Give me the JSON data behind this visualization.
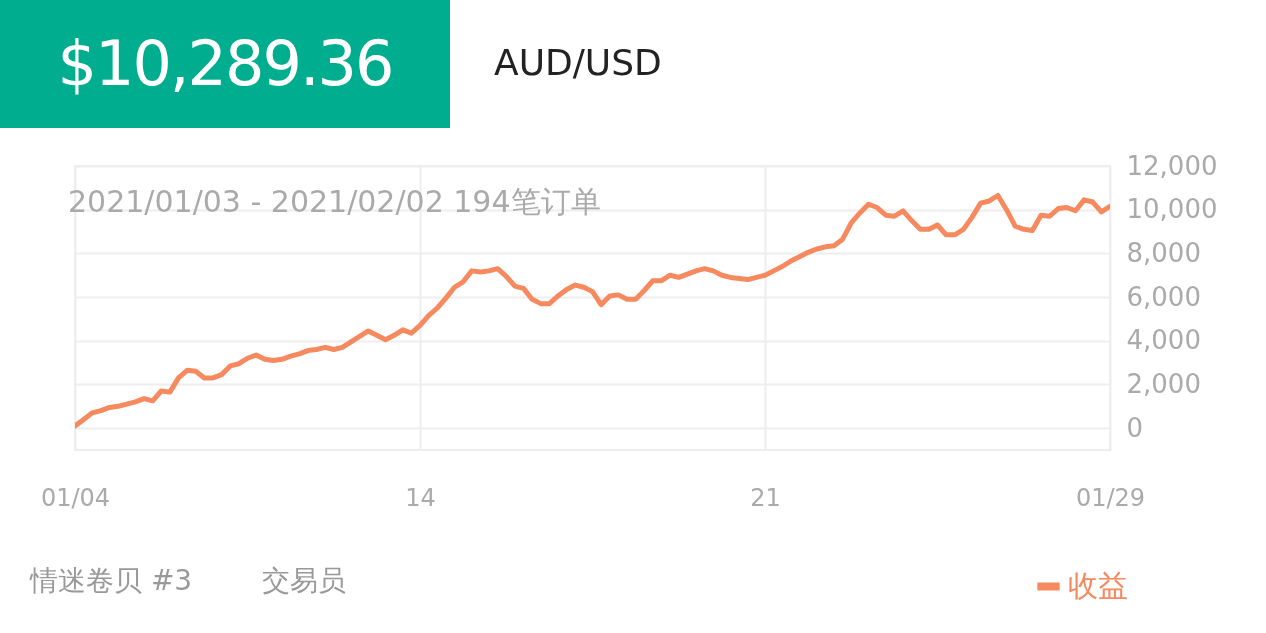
{
  "chart_data": {
    "type": "line",
    "title": "$10,289.36",
    "subtitle": "AUD/USD",
    "annotations": [
      "2021/01/03 - 2021/02/02 194笔订单",
      "情迷卷贝 #3",
      "交易员"
    ],
    "categories": [
      "01/04",
      null,
      null,
      null,
      null,
      null,
      null,
      null,
      null,
      null,
      null,
      null,
      null,
      null,
      null,
      null,
      null,
      null,
      null,
      null,
      null,
      null,
      null,
      null,
      null,
      null,
      null,
      null,
      null,
      null,
      null,
      null,
      null,
      null,
      null,
      null,
      null,
      null,
      null,
      null,
      "14",
      null,
      null,
      null,
      null,
      null,
      null,
      null,
      null,
      null,
      null,
      null,
      null,
      null,
      null,
      null,
      null,
      null,
      null,
      null,
      null,
      null,
      null,
      null,
      null,
      null,
      null,
      null,
      null,
      null,
      null,
      null,
      null,
      null,
      null,
      null,
      null,
      null,
      null,
      null,
      "21",
      null,
      null,
      null,
      null,
      null,
      null,
      null,
      null,
      null,
      null,
      null,
      null,
      null,
      null,
      null,
      null,
      null,
      null,
      null,
      null,
      null,
      null,
      null,
      null,
      null,
      null,
      null,
      null,
      null,
      null,
      null,
      null,
      null,
      null,
      null,
      null,
      null,
      null,
      null,
      "01/29"
    ],
    "ylim": [
      -1000,
      12000
    ],
    "yticks": [
      0,
      {
        "value": 2000,
        "label": "2,000"
      },
      {
        "value": 4000,
        "label": "4,000"
      },
      {
        "value": 6000,
        "label": "6,000"
      },
      {
        "value": 8000,
        "label": "8,000"
      },
      {
        "value": 10000,
        "label": "10,000"
      },
      {
        "value": 12000,
        "label": "12,000"
      }
    ],
    "grid": true,
    "legend": "bottom right",
    "marker": "none",
    "line_style": "solid",
    "series": [
      {
        "name": "收益",
        "color": "#f7895f",
        "values": [
          100,
          400,
          700,
          800,
          950,
          1000,
          1100,
          1200,
          1350,
          1250,
          1700,
          1650,
          2300,
          2650,
          2600,
          2300,
          2300,
          2450,
          2850,
          2950,
          3200,
          3350,
          3150,
          3100,
          3150,
          3300,
          3400,
          3550,
          3600,
          3700,
          3600,
          3700,
          3950,
          4200,
          4450,
          4250,
          4050,
          4250,
          4500,
          4350,
          4700,
          5150,
          5500,
          5950,
          6450,
          6700,
          7200,
          7150,
          7200,
          7300,
          6950,
          6500,
          6400,
          5900,
          5700,
          5700,
          6050,
          6350,
          6550,
          6450,
          6250,
          5650,
          6050,
          6100,
          5900,
          5900,
          6300,
          6750,
          6750,
          7000,
          6900,
          7050,
          7200,
          7300,
          7200,
          7000,
          6900,
          6850,
          6800,
          6900,
          7000,
          7200,
          7400,
          7650,
          7850,
          8050,
          8200,
          8300,
          8350,
          8650,
          9400,
          9850,
          10250,
          10100,
          9750,
          9700,
          9950,
          9500,
          9100,
          9100,
          9300,
          8850,
          8850,
          9100,
          9650,
          10300,
          10400,
          10650,
          10000,
          9250,
          9100,
          9050,
          9750,
          9700,
          10050,
          10100,
          9950,
          10450,
          10350,
          9900,
          10150
        ]
      }
    ]
  }
}
